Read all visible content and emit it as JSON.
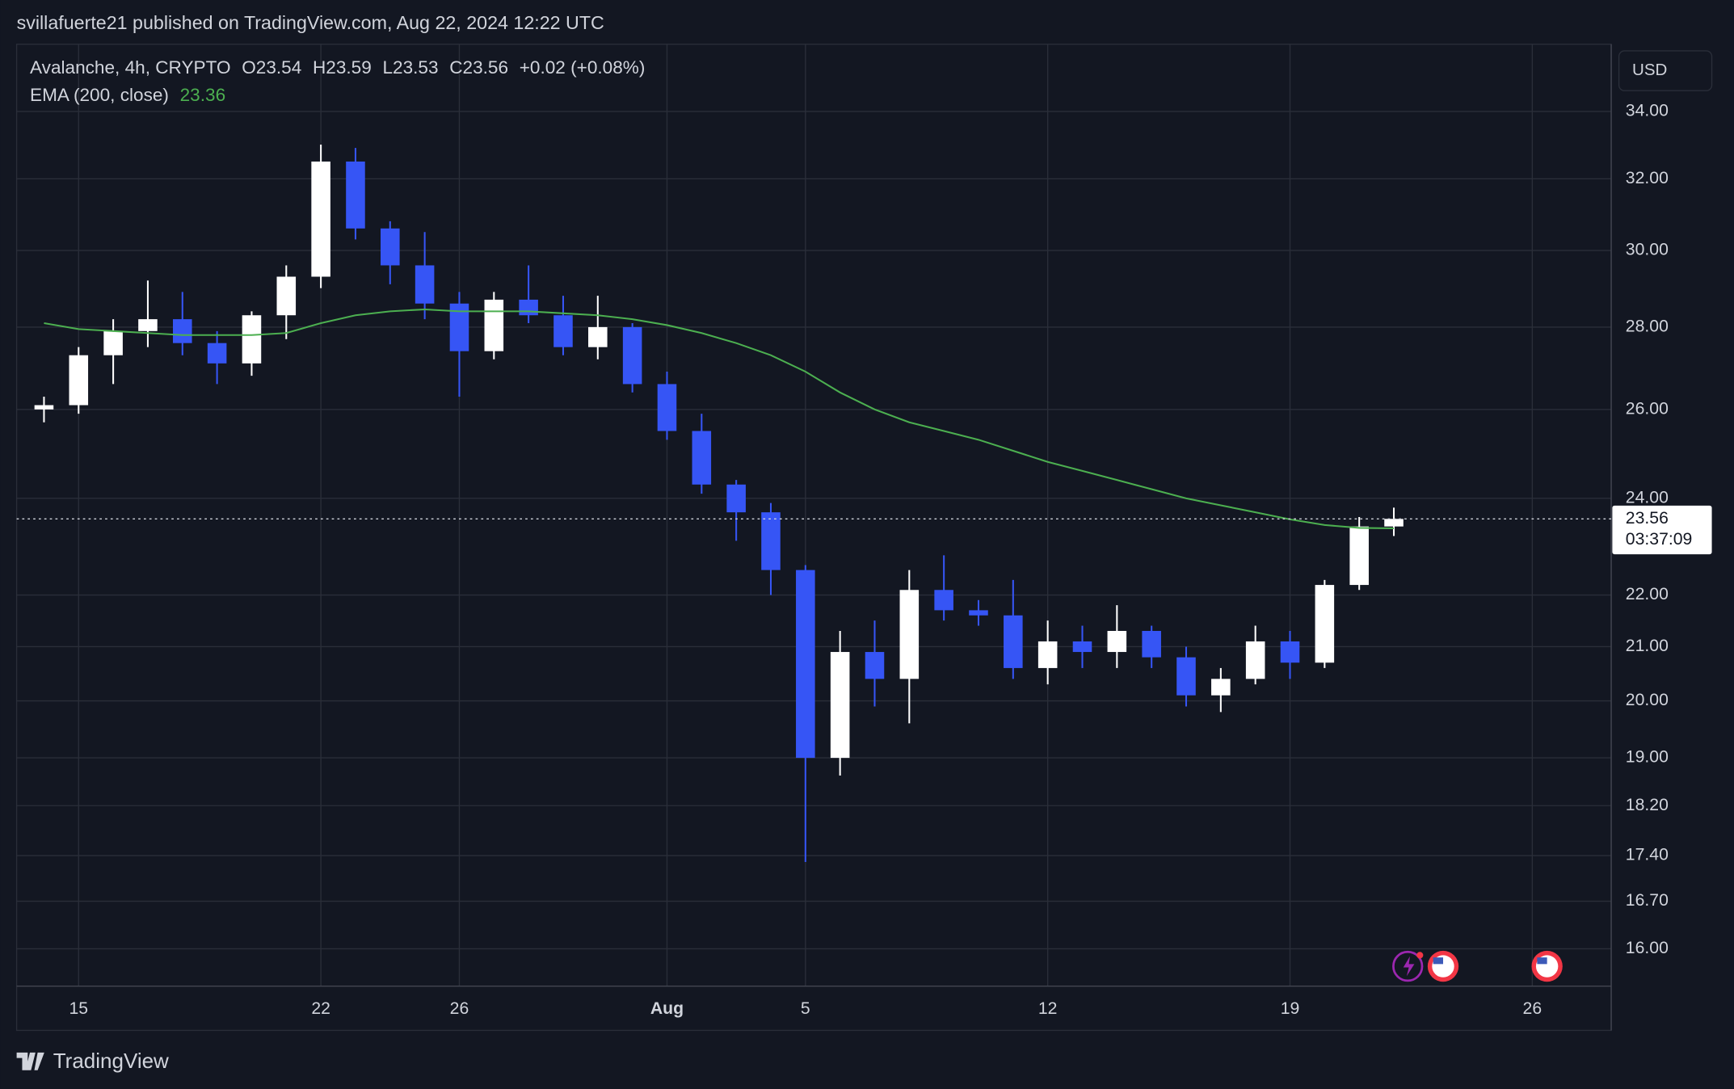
{
  "header": {
    "text": "svillafuerte21 published on TradingView.com, Aug 22, 2024 12:22 UTC"
  },
  "footer": {
    "brand": "TradingView"
  },
  "chart_data": {
    "type": "candlestick",
    "symbol": "Avalanche, 4h, CRYPTO",
    "ohlc_legend": {
      "open": "O23.54",
      "high": "H23.59",
      "low": "L23.53",
      "close": "C23.56",
      "change": "+0.02 (+0.08%)"
    },
    "currency": "USD",
    "countdown": "03:37:09",
    "last_price": 23.56,
    "up_color": "#ffffff",
    "down_color": "#3655f5",
    "categories": [
      null,
      null,
      null,
      null,
      null,
      null,
      null,
      null,
      null,
      null,
      null,
      null,
      null,
      null,
      null,
      null,
      null,
      null,
      null,
      null,
      null,
      null,
      null,
      null,
      null,
      null,
      null,
      null,
      null,
      null,
      null,
      null,
      null,
      null,
      null,
      null,
      null,
      null,
      null,
      null
    ],
    "open": [
      26.0,
      26.1,
      27.3,
      27.9,
      28.2,
      27.6,
      27.1,
      28.3,
      29.3,
      32.5,
      30.6,
      29.6,
      28.6,
      27.4,
      28.7,
      28.3,
      27.5,
      28.0,
      26.6,
      25.5,
      24.3,
      23.7,
      22.5,
      19.0,
      20.9,
      20.4,
      22.1,
      21.7,
      21.6,
      20.6,
      21.1,
      20.9,
      21.3,
      20.8,
      20.1,
      20.4,
      21.1,
      20.7,
      22.2,
      23.4
    ],
    "high": [
      26.3,
      27.5,
      28.2,
      29.2,
      28.9,
      27.9,
      28.4,
      29.6,
      33.0,
      32.9,
      30.8,
      30.5,
      28.9,
      28.9,
      29.6,
      28.8,
      28.8,
      28.1,
      26.9,
      25.9,
      24.4,
      23.9,
      22.6,
      21.3,
      21.5,
      22.5,
      22.8,
      21.9,
      22.3,
      21.5,
      21.4,
      21.8,
      21.4,
      21.0,
      20.6,
      21.4,
      21.3,
      22.3,
      23.6,
      23.8
    ],
    "low": [
      25.7,
      25.9,
      26.6,
      27.5,
      27.3,
      26.6,
      26.8,
      27.7,
      29.0,
      30.3,
      29.1,
      28.2,
      26.3,
      27.2,
      28.1,
      27.3,
      27.2,
      26.4,
      25.3,
      24.1,
      23.1,
      22.0,
      17.3,
      18.7,
      19.9,
      19.6,
      21.5,
      21.4,
      20.4,
      20.3,
      20.6,
      20.6,
      20.6,
      19.9,
      19.8,
      20.3,
      20.4,
      20.6,
      22.1,
      23.2
    ],
    "close": [
      26.1,
      27.3,
      27.9,
      28.2,
      27.6,
      27.1,
      28.3,
      29.3,
      32.5,
      30.6,
      29.6,
      28.6,
      27.4,
      28.7,
      28.3,
      27.5,
      28.0,
      26.6,
      25.5,
      24.3,
      23.7,
      22.5,
      19.0,
      20.9,
      20.4,
      22.1,
      21.7,
      21.6,
      20.6,
      21.1,
      20.9,
      21.3,
      20.8,
      20.1,
      20.4,
      21.1,
      20.7,
      22.2,
      23.4,
      23.56
    ],
    "ema": {
      "name": "EMA (200, close)",
      "color": "#4caf50",
      "values": [
        28.1,
        27.95,
        27.9,
        27.85,
        27.8,
        27.8,
        27.8,
        27.85,
        28.1,
        28.3,
        28.4,
        28.45,
        28.4,
        28.4,
        28.4,
        28.35,
        28.3,
        28.2,
        28.05,
        27.85,
        27.6,
        27.3,
        26.9,
        26.4,
        26.0,
        25.7,
        25.5,
        25.3,
        25.05,
        24.8,
        24.6,
        24.4,
        24.2,
        24.0,
        23.85,
        23.7,
        23.55,
        23.43,
        23.37,
        23.36
      ]
    },
    "log_scale": true,
    "grid": true,
    "xlim": [
      -0.79,
      45.28
    ],
    "ylim": [
      15.47,
      36.12
    ],
    "xticks": [
      {
        "value": 1,
        "label": "15"
      },
      {
        "value": 8,
        "label": "22"
      },
      {
        "value": 12,
        "label": "26"
      },
      {
        "value": 18,
        "label": "Aug"
      },
      {
        "value": 22,
        "label": "5"
      },
      {
        "value": 29,
        "label": "12"
      },
      {
        "value": 36,
        "label": "19"
      },
      {
        "value": 43,
        "label": "26"
      }
    ],
    "yticks": [
      {
        "value": 34,
        "label": "34.00"
      },
      {
        "value": 32,
        "label": "32.00"
      },
      {
        "value": 30,
        "label": "30.00"
      },
      {
        "value": 28,
        "label": "28.00"
      },
      {
        "value": 26,
        "label": "26.00"
      },
      {
        "value": 24,
        "label": "24.00"
      },
      {
        "value": 22,
        "label": "22.00"
      },
      {
        "value": 21,
        "label": "21.00"
      },
      {
        "value": 20,
        "label": "20.00"
      },
      {
        "value": 19,
        "label": "19.00"
      },
      {
        "value": 18.2,
        "label": "18.20"
      },
      {
        "value": 17.4,
        "label": "17.40"
      },
      {
        "value": 16.7,
        "label": "16.70"
      },
      {
        "value": 16,
        "label": "16.00"
      }
    ]
  }
}
